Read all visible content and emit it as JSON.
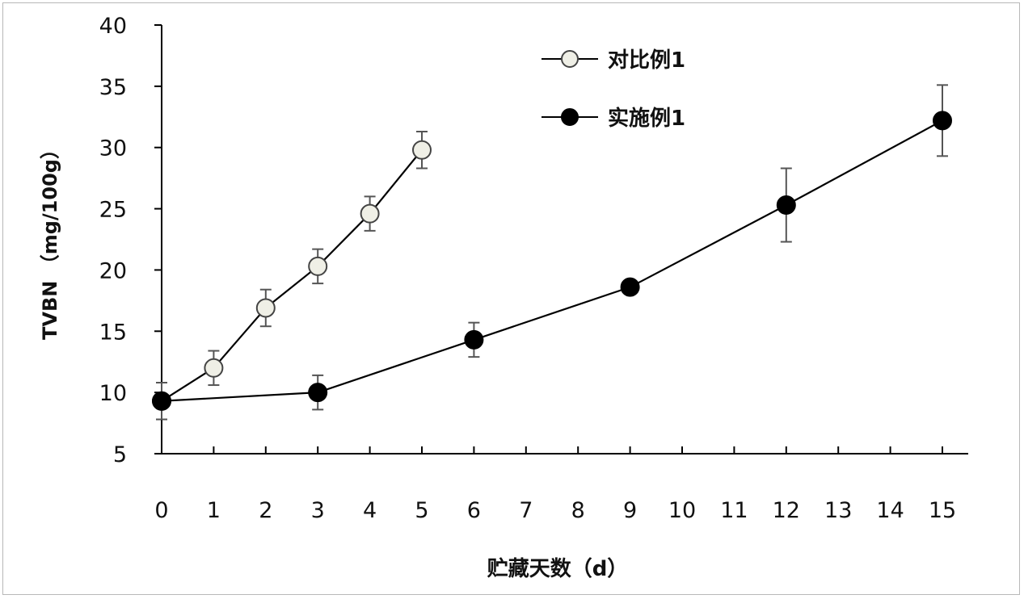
{
  "chart_data": {
    "type": "line",
    "xlabel": "贮藏天数（d）",
    "ylabel": "TVBN （mg/100g）",
    "xlim": [
      0,
      15
    ],
    "ylim": [
      5,
      40
    ],
    "xticks": [
      0,
      1,
      2,
      3,
      4,
      5,
      6,
      7,
      8,
      9,
      10,
      11,
      12,
      13,
      14,
      15
    ],
    "yticks": [
      5,
      10,
      15,
      20,
      25,
      30,
      35,
      40
    ],
    "grid": false,
    "legend_position": "top-center",
    "series": [
      {
        "name": "对比例1",
        "marker": "open-circle",
        "marker_fill": "#efefe6",
        "x": [
          0,
          1,
          2,
          3,
          4,
          5
        ],
        "y": [
          9.3,
          12.0,
          16.9,
          20.3,
          24.6,
          29.8
        ],
        "error": [
          1.5,
          1.4,
          1.5,
          1.4,
          1.4,
          1.5
        ]
      },
      {
        "name": "实施例1",
        "marker": "filled-circle",
        "marker_fill": "#000000",
        "x": [
          0,
          3,
          6,
          9,
          12,
          15
        ],
        "y": [
          9.3,
          10.0,
          14.3,
          18.6,
          25.3,
          32.2
        ],
        "error": [
          1.5,
          1.4,
          1.4,
          0,
          3.0,
          2.9
        ]
      }
    ]
  }
}
